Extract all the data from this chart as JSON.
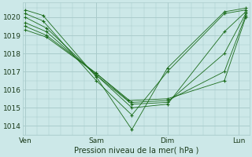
{
  "title": "Pression niveau de la mer( hPa )",
  "xlabels": [
    "Ven",
    "Sam",
    "Dim",
    "Lun"
  ],
  "xticks": [
    0,
    1,
    2,
    3
  ],
  "xlim": [
    -0.03,
    3.15
  ],
  "ylim": [
    1013.5,
    1020.8
  ],
  "yticks": [
    1014,
    1015,
    1016,
    1017,
    1018,
    1019,
    1020
  ],
  "bg_color": "#cce8e8",
  "grid_color": "#aacccc",
  "line_color": "#1a6b1a",
  "marker_color": "#1a6b1a",
  "series": [
    {
      "x": [
        0.0,
        0.25,
        1.0,
        1.5,
        2.0,
        2.8,
        3.1
      ],
      "y": [
        1020.4,
        1020.1,
        1016.7,
        1013.8,
        1017.2,
        1020.3,
        1020.5
      ]
    },
    {
      "x": [
        0.0,
        0.25,
        1.0,
        1.5,
        2.0,
        2.8,
        3.1
      ],
      "y": [
        1020.2,
        1019.8,
        1016.5,
        1014.6,
        1017.0,
        1020.2,
        1020.4
      ]
    },
    {
      "x": [
        0.0,
        0.3,
        1.0,
        1.5,
        2.0,
        2.8,
        3.1
      ],
      "y": [
        1020.0,
        1019.4,
        1016.8,
        1015.0,
        1015.2,
        1019.2,
        1020.3
      ]
    },
    {
      "x": [
        0.0,
        0.3,
        1.0,
        1.5,
        2.0,
        2.8,
        3.1
      ],
      "y": [
        1019.7,
        1019.2,
        1016.8,
        1015.2,
        1015.3,
        1018.0,
        1020.2
      ]
    },
    {
      "x": [
        0.0,
        0.3,
        1.0,
        1.5,
        2.0,
        2.8,
        3.1
      ],
      "y": [
        1019.5,
        1019.0,
        1016.9,
        1015.3,
        1015.4,
        1017.0,
        1020.1
      ]
    },
    {
      "x": [
        0.0,
        0.3,
        1.0,
        1.45,
        2.0,
        2.8,
        3.1
      ],
      "y": [
        1019.3,
        1018.9,
        1016.9,
        1015.4,
        1015.5,
        1016.5,
        1020.0
      ]
    }
  ]
}
